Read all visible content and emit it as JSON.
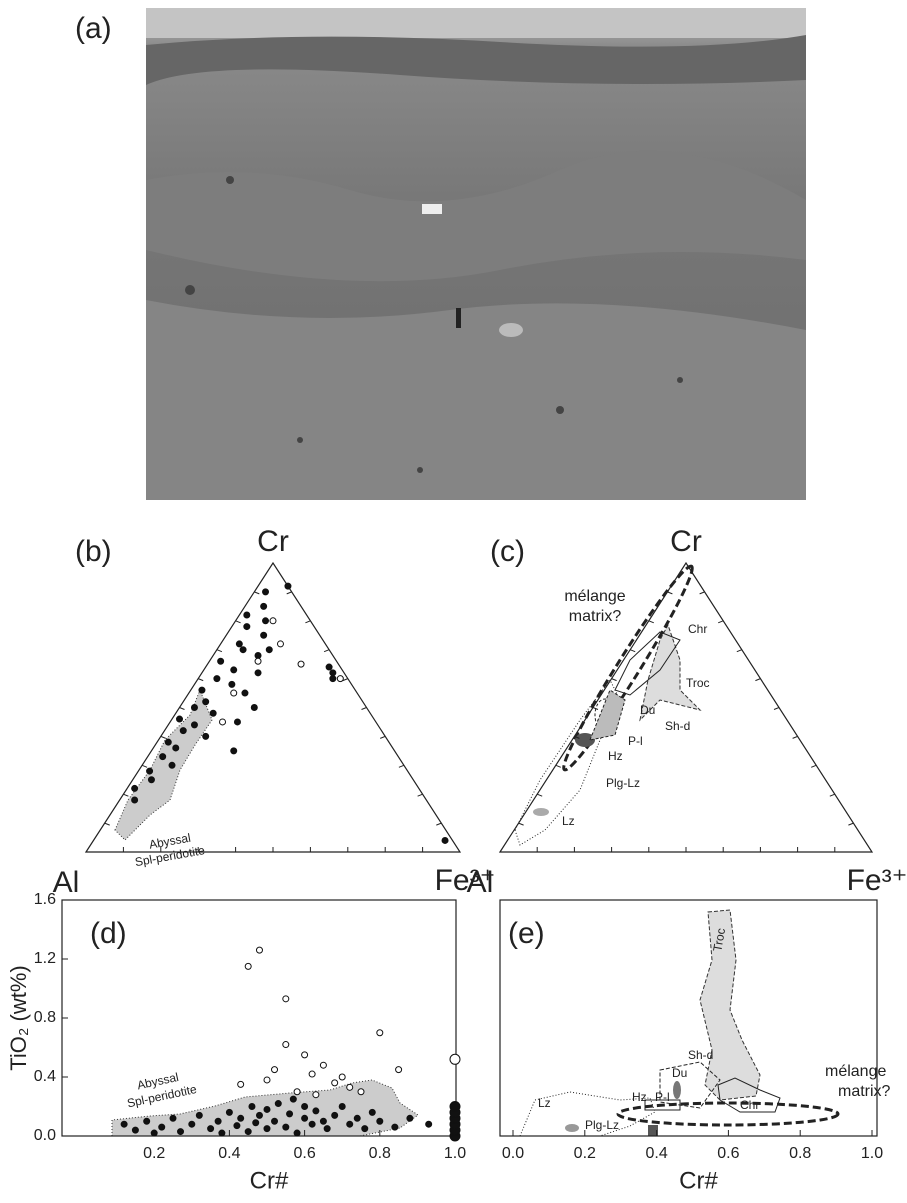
{
  "photo": {
    "label": "(a)"
  },
  "chart_data": [
    {
      "type": "ternary",
      "panel_label": "(b)",
      "corners": [
        "Cr",
        "Al",
        "Fe³⁺"
      ],
      "field_labels": [
        "Abyssal",
        "Spl-peridotite"
      ],
      "series": [
        {
          "marker": "filled",
          "cr": [
            0.9,
            0.85,
            0.82,
            0.8,
            0.78,
            0.75,
            0.72,
            0.7,
            0.68,
            0.66,
            0.63,
            0.6,
            0.58,
            0.56,
            0.55,
            0.52,
            0.5,
            0.48,
            0.46,
            0.44,
            0.42,
            0.4,
            0.38,
            0.36,
            0.33,
            0.3,
            0.28,
            0.25,
            0.22,
            0.18,
            0.5,
            0.45,
            0.62,
            0.7,
            0.35,
            0.92,
            0.64,
            0.62,
            0.6,
            0.04
          ],
          "fe": [
            0.03,
            0.05,
            0.02,
            0.08,
            0.04,
            0.1,
            0.05,
            0.07,
            0.12,
            0.03,
            0.08,
            0.05,
            0.1,
            0.03,
            0.15,
            0.06,
            0.04,
            0.1,
            0.02,
            0.07,
            0.05,
            0.12,
            0.03,
            0.06,
            0.04,
            0.08,
            0.03,
            0.05,
            0.02,
            0.04,
            0.2,
            0.18,
            0.15,
            0.14,
            0.22,
            0.08,
            0.33,
            0.35,
            0.36,
            0.94
          ]
        },
        {
          "marker": "open",
          "cr": [
            0.8,
            0.72,
            0.66,
            0.55,
            0.45,
            0.6,
            0.65
          ],
          "fe": [
            0.1,
            0.16,
            0.13,
            0.12,
            0.14,
            0.38,
            0.25
          ]
        }
      ]
    },
    {
      "type": "ternary",
      "panel_label": "(c)",
      "corners": [
        "Cr",
        "Al",
        "Fe³⁺"
      ],
      "field_labels": [
        "mélange",
        "matrix?",
        "Chr",
        "Troc",
        "Du",
        "Sh-d",
        "P-l",
        "Hz",
        "Plg-Lz",
        "Lz"
      ],
      "series": []
    },
    {
      "type": "scatter",
      "panel_label": "(d)",
      "xlabel": "Cr#",
      "ylabel": "TiO₂ (wt%)",
      "xlim": [
        0,
        1
      ],
      "ylim": [
        0,
        1.6
      ],
      "xticks": [
        0.2,
        0.4,
        0.6,
        0.8,
        {
          "value": 1,
          "label": "1.0"
        }
      ],
      "yticks": [
        {
          "value": 0,
          "label": "0.0"
        },
        0.4,
        0.8,
        1.2,
        1.6
      ],
      "field_labels": [
        "Abyssal",
        "Spl-peridotite"
      ],
      "series": [
        {
          "marker": "filled",
          "x": [
            0.12,
            0.15,
            0.18,
            0.2,
            0.22,
            0.25,
            0.27,
            0.3,
            0.32,
            0.35,
            0.37,
            0.38,
            0.4,
            0.42,
            0.43,
            0.45,
            0.46,
            0.47,
            0.48,
            0.5,
            0.5,
            0.52,
            0.53,
            0.55,
            0.56,
            0.57,
            0.58,
            0.6,
            0.6,
            0.62,
            0.63,
            0.65,
            0.66,
            0.68,
            0.7,
            0.72,
            0.74,
            0.76,
            0.78,
            0.8,
            0.84,
            0.88,
            0.93,
            1,
            1,
            1,
            1,
            1,
            1
          ],
          "y": [
            0.08,
            0.04,
            0.1,
            0.02,
            0.06,
            0.12,
            0.03,
            0.08,
            0.14,
            0.05,
            0.1,
            0.02,
            0.16,
            0.07,
            0.12,
            0.03,
            0.2,
            0.09,
            0.14,
            0.05,
            0.18,
            0.1,
            0.22,
            0.06,
            0.15,
            0.25,
            0.02,
            0.12,
            0.2,
            0.08,
            0.17,
            0.1,
            0.05,
            0.14,
            0.2,
            0.08,
            0.12,
            0.05,
            0.16,
            0.1,
            0.06,
            0.12,
            0.08,
            0,
            0.04,
            0.08,
            0.12,
            0.16,
            0.2
          ]
        },
        {
          "marker": "open",
          "x": [
            0.45,
            0.48,
            0.55,
            0.55,
            0.52,
            0.6,
            0.62,
            0.65,
            0.68,
            0.7,
            0.72,
            0.75,
            0.5,
            0.58,
            0.63,
            0.8,
            0.85,
            1,
            0.43
          ],
          "y": [
            1.15,
            1.26,
            0.93,
            0.62,
            0.45,
            0.55,
            0.42,
            0.48,
            0.36,
            0.4,
            0.33,
            0.3,
            0.38,
            0.3,
            0.28,
            0.7,
            0.45,
            0.52,
            0.35
          ]
        }
      ]
    },
    {
      "type": "scatter",
      "panel_label": "(e)",
      "xlabel": "Cr#",
      "xlim": [
        0,
        1
      ],
      "ylim": [
        0,
        1.6
      ],
      "xticks": [
        {
          "value": 0,
          "label": "0.0"
        },
        0.2,
        0.4,
        0.6,
        0.8,
        {
          "value": 1,
          "label": "1.0"
        }
      ],
      "field_labels": [
        "Troc",
        "Sh-d",
        "Du",
        "Hz",
        "P-l",
        "Lz",
        "Plg-Lz",
        "Chr",
        "mélange",
        "matrix?"
      ],
      "series": []
    }
  ]
}
